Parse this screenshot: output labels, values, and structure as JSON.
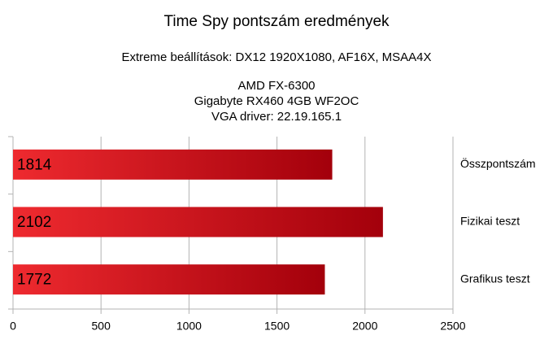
{
  "chart_data": {
    "type": "bar",
    "orientation": "horizontal",
    "title": "Time Spy pontszám eredmények",
    "subtitle": "Extreme beállítások: DX12 1920X1080, AF16X, MSAA4X",
    "description": [
      "AMD FX-6300",
      "Gigabyte RX460 4GB WF2OC",
      "VGA driver: 22.19.165.1"
    ],
    "categories": [
      "Összpontszám",
      "Fizikai teszt",
      "Grafikus teszt"
    ],
    "values": [
      1814,
      2102,
      1772
    ],
    "color": [
      "#ee2a2f",
      "#a3000b"
    ],
    "xlim": [
      0,
      2500
    ],
    "xticks": [
      0,
      500,
      1000,
      1500,
      2000,
      2500
    ],
    "grid": true
  }
}
